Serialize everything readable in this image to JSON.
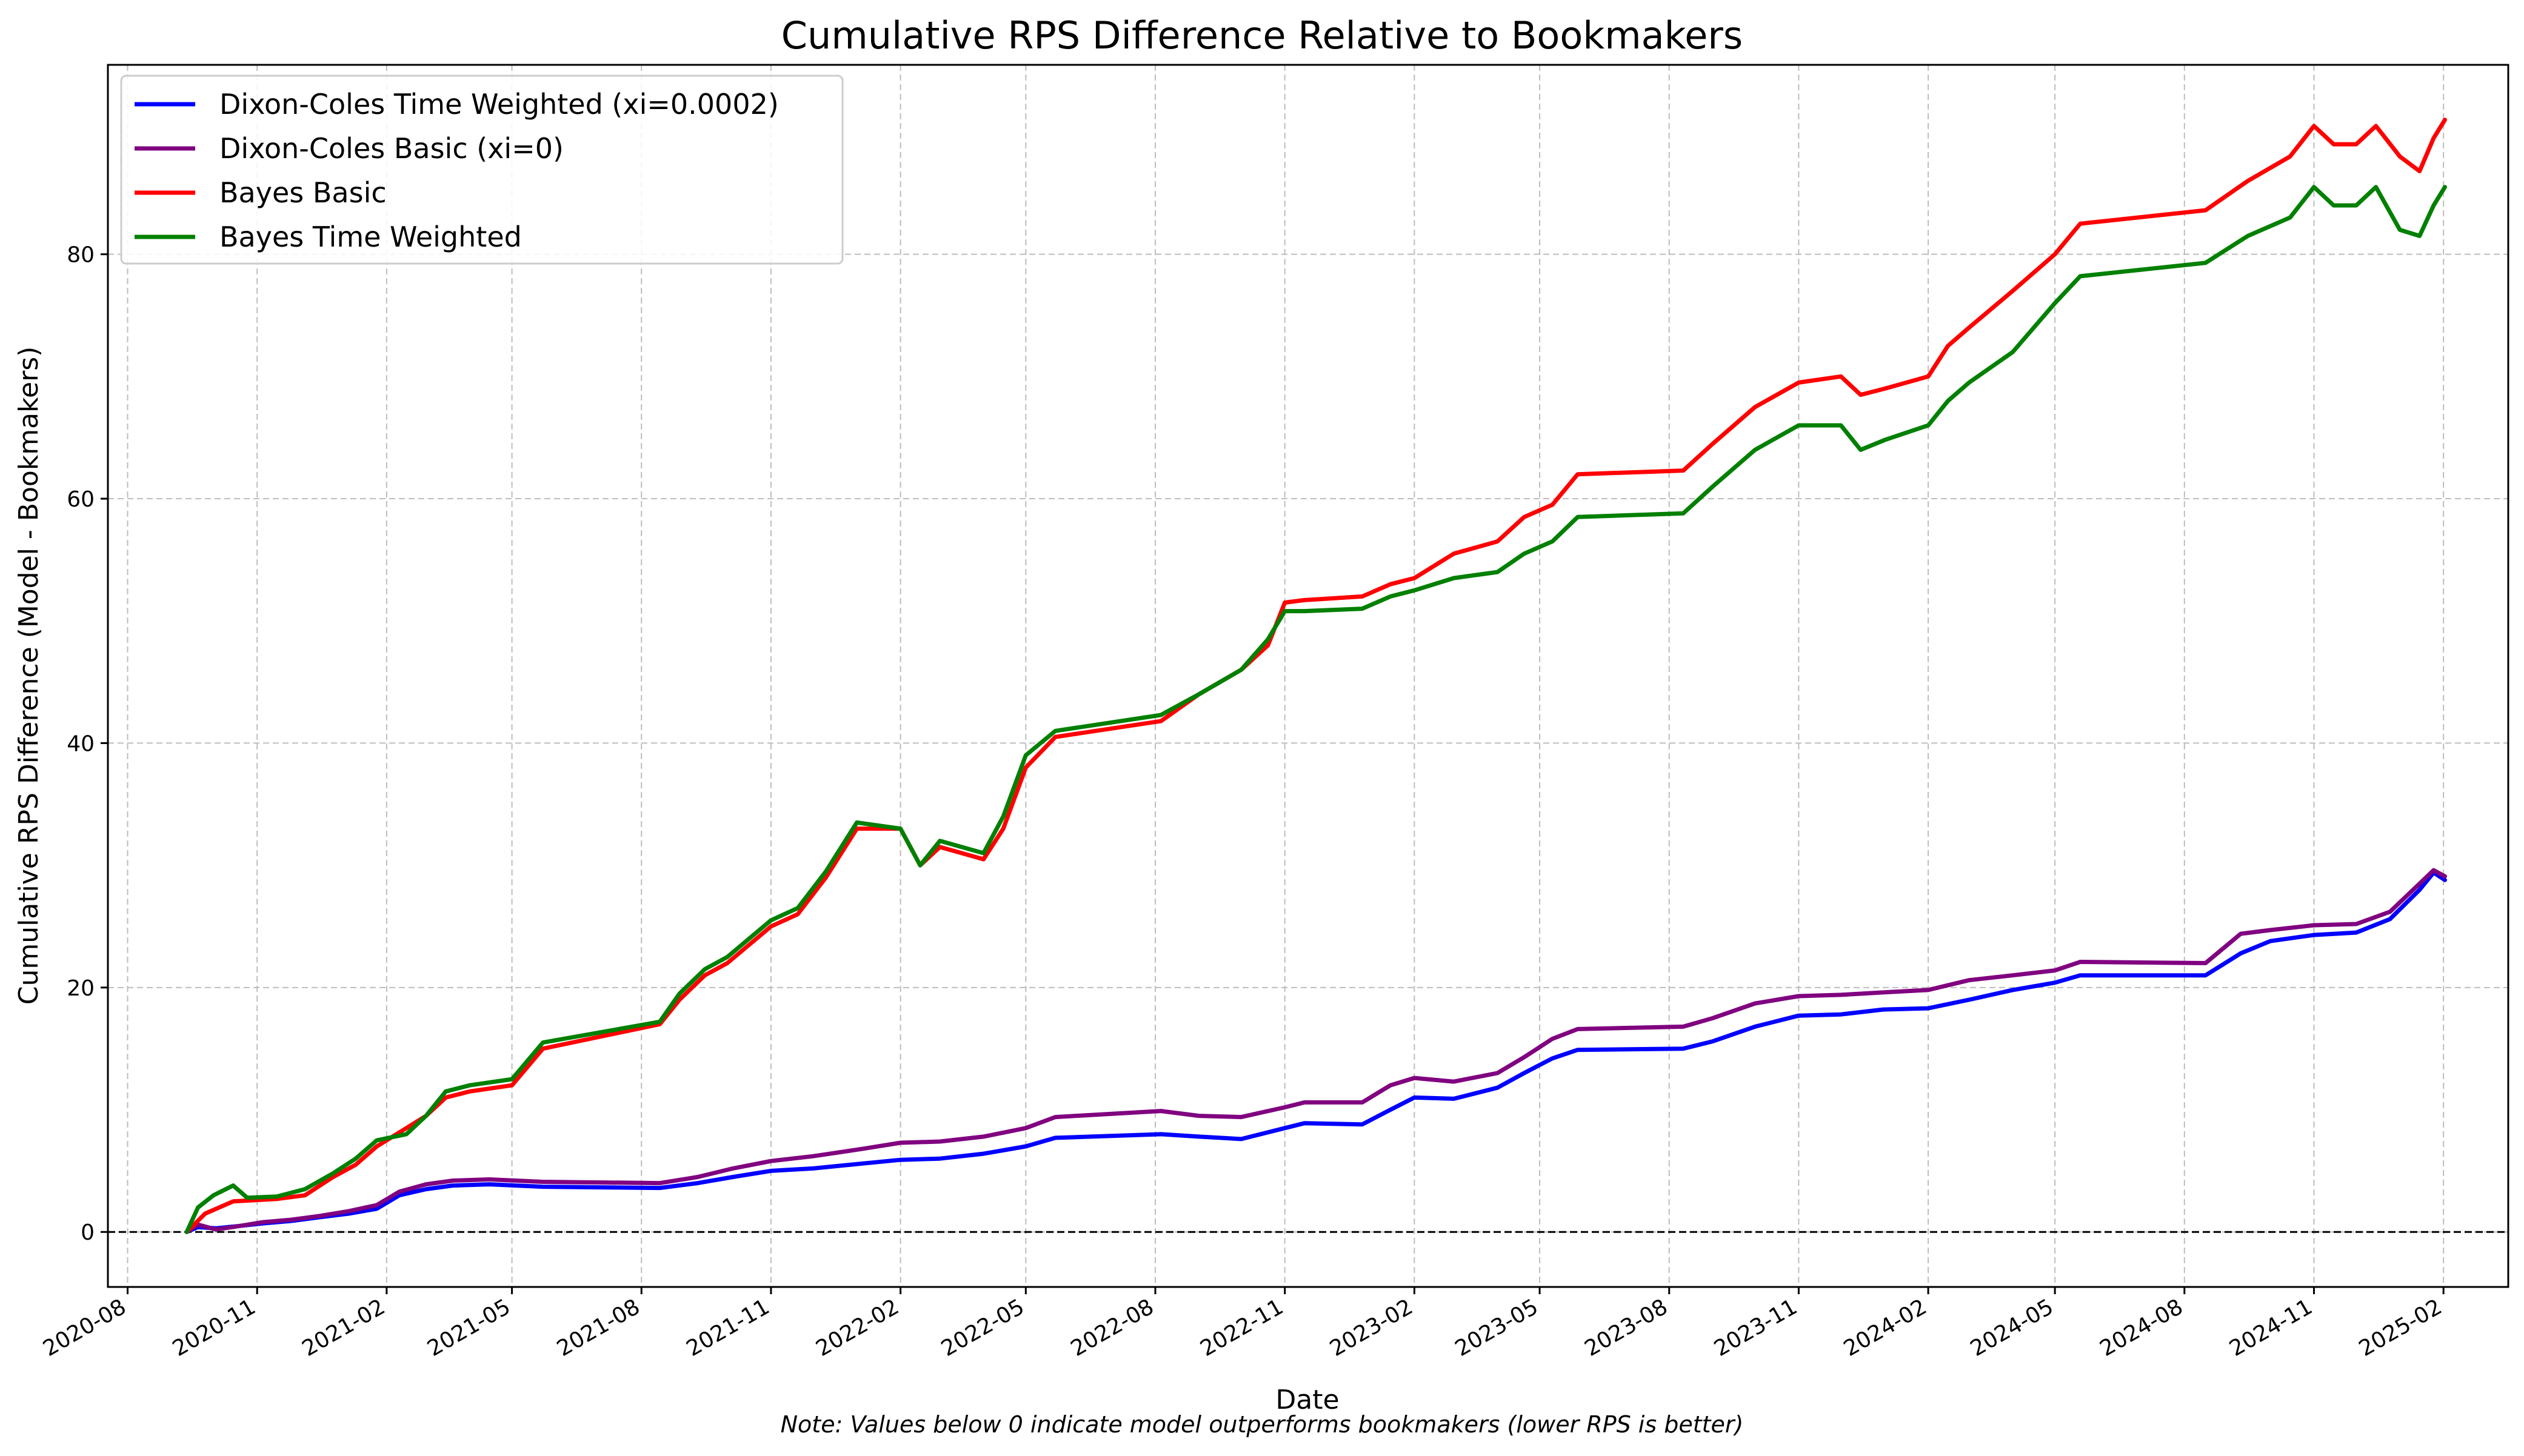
{
  "chart_data": {
    "type": "line",
    "title": "Cumulative RPS Difference Relative to Bookmakers",
    "xlabel": "Date",
    "ylabel": "Cumulative RPS Difference (Model - Bookmakers)",
    "note": "Note: Values below 0 indicate model outperforms bookmakers (lower RPS is better)",
    "x_ticks": [
      "2020-08",
      "2020-11",
      "2021-02",
      "2021-05",
      "2021-08",
      "2021-11",
      "2022-02",
      "2022-05",
      "2022-08",
      "2022-11",
      "2023-02",
      "2023-05",
      "2023-08",
      "2023-11",
      "2024-02",
      "2024-05",
      "2024-08",
      "2024-11",
      "2025-02"
    ],
    "y_ticks": [
      0,
      20,
      40,
      60,
      80
    ],
    "xlim": [
      "2020-07-18",
      "2025-03-19"
    ],
    "ylim": [
      -4.5,
      95.5
    ],
    "grid": true,
    "legend_position": "top-left",
    "reference_line": 0,
    "series": [
      {
        "name": "Dixon-Coles Time Weighted (xi=0.0002)",
        "color": "#0000ff",
        "points": [
          [
            "2020-09-12",
            0
          ],
          [
            "2020-09-20",
            0.4
          ],
          [
            "2020-10-03",
            0.3
          ],
          [
            "2020-10-20",
            0.5
          ],
          [
            "2020-11-05",
            0.7
          ],
          [
            "2020-11-25",
            0.9
          ],
          [
            "2020-12-15",
            1.2
          ],
          [
            "2021-01-05",
            1.5
          ],
          [
            "2021-01-25",
            1.9
          ],
          [
            "2021-02-10",
            3.0
          ],
          [
            "2021-03-01",
            3.5
          ],
          [
            "2021-03-20",
            3.8
          ],
          [
            "2021-04-15",
            3.9
          ],
          [
            "2021-05-23",
            3.7
          ],
          [
            "2021-08-14",
            3.6
          ],
          [
            "2021-09-10",
            4.0
          ],
          [
            "2021-10-05",
            4.5
          ],
          [
            "2021-11-01",
            5.0
          ],
          [
            "2021-12-01",
            5.2
          ],
          [
            "2022-01-05",
            5.6
          ],
          [
            "2022-02-01",
            5.9
          ],
          [
            "2022-03-01",
            6.0
          ],
          [
            "2022-04-01",
            6.4
          ],
          [
            "2022-05-01",
            7.0
          ],
          [
            "2022-05-22",
            7.7
          ],
          [
            "2022-08-05",
            8.0
          ],
          [
            "2022-09-01",
            7.8
          ],
          [
            "2022-10-01",
            7.6
          ],
          [
            "2022-11-01",
            8.5
          ],
          [
            "2022-11-15",
            8.9
          ],
          [
            "2022-12-26",
            8.8
          ],
          [
            "2023-01-15",
            10.0
          ],
          [
            "2023-02-01",
            11.0
          ],
          [
            "2023-03-01",
            10.9
          ],
          [
            "2023-04-01",
            11.8
          ],
          [
            "2023-04-20",
            13.0
          ],
          [
            "2023-05-10",
            14.2
          ],
          [
            "2023-05-28",
            14.9
          ],
          [
            "2023-08-11",
            15.0
          ],
          [
            "2023-09-01",
            15.6
          ],
          [
            "2023-10-01",
            16.8
          ],
          [
            "2023-11-01",
            17.7
          ],
          [
            "2023-12-01",
            17.8
          ],
          [
            "2023-12-31",
            18.2
          ],
          [
            "2024-02-01",
            18.3
          ],
          [
            "2024-03-01",
            19.0
          ],
          [
            "2024-04-01",
            19.8
          ],
          [
            "2024-05-01",
            20.4
          ],
          [
            "2024-05-19",
            21.0
          ],
          [
            "2024-08-16",
            21.0
          ],
          [
            "2024-09-10",
            22.8
          ],
          [
            "2024-10-01",
            23.8
          ],
          [
            "2024-11-01",
            24.3
          ],
          [
            "2024-12-01",
            24.5
          ],
          [
            "2024-12-25",
            25.6
          ],
          [
            "2025-01-15",
            28.0
          ],
          [
            "2025-01-25",
            29.4
          ],
          [
            "2025-02-02",
            28.8
          ]
        ]
      },
      {
        "name": "Dixon-Coles Basic (xi=0)",
        "color": "#800080",
        "points": [
          [
            "2020-09-12",
            0
          ],
          [
            "2020-09-20",
            0.6
          ],
          [
            "2020-10-03",
            0.2
          ],
          [
            "2020-10-20",
            0.5
          ],
          [
            "2020-11-05",
            0.8
          ],
          [
            "2020-11-25",
            1.0
          ],
          [
            "2020-12-15",
            1.3
          ],
          [
            "2021-01-05",
            1.7
          ],
          [
            "2021-01-25",
            2.2
          ],
          [
            "2021-02-10",
            3.3
          ],
          [
            "2021-03-01",
            3.9
          ],
          [
            "2021-03-20",
            4.2
          ],
          [
            "2021-04-15",
            4.3
          ],
          [
            "2021-05-23",
            4.1
          ],
          [
            "2021-08-14",
            4.0
          ],
          [
            "2021-09-10",
            4.5
          ],
          [
            "2021-10-05",
            5.2
          ],
          [
            "2021-11-01",
            5.8
          ],
          [
            "2021-12-01",
            6.2
          ],
          [
            "2022-01-05",
            6.8
          ],
          [
            "2022-02-01",
            7.3
          ],
          [
            "2022-03-01",
            7.4
          ],
          [
            "2022-04-01",
            7.8
          ],
          [
            "2022-05-01",
            8.5
          ],
          [
            "2022-05-22",
            9.4
          ],
          [
            "2022-08-05",
            9.9
          ],
          [
            "2022-09-01",
            9.5
          ],
          [
            "2022-10-01",
            9.4
          ],
          [
            "2022-11-01",
            10.2
          ],
          [
            "2022-11-15",
            10.6
          ],
          [
            "2022-12-26",
            10.6
          ],
          [
            "2023-01-15",
            12.0
          ],
          [
            "2023-02-01",
            12.6
          ],
          [
            "2023-03-01",
            12.3
          ],
          [
            "2023-04-01",
            13.0
          ],
          [
            "2023-04-20",
            14.3
          ],
          [
            "2023-05-10",
            15.8
          ],
          [
            "2023-05-28",
            16.6
          ],
          [
            "2023-08-11",
            16.8
          ],
          [
            "2023-09-01",
            17.5
          ],
          [
            "2023-10-01",
            18.7
          ],
          [
            "2023-11-01",
            19.3
          ],
          [
            "2023-12-01",
            19.4
          ],
          [
            "2023-12-31",
            19.6
          ],
          [
            "2024-02-01",
            19.8
          ],
          [
            "2024-03-01",
            20.6
          ],
          [
            "2024-04-01",
            21.0
          ],
          [
            "2024-05-01",
            21.4
          ],
          [
            "2024-05-19",
            22.1
          ],
          [
            "2024-08-16",
            22.0
          ],
          [
            "2024-09-10",
            24.4
          ],
          [
            "2024-10-01",
            24.7
          ],
          [
            "2024-11-01",
            25.1
          ],
          [
            "2024-12-01",
            25.2
          ],
          [
            "2024-12-25",
            26.2
          ],
          [
            "2025-01-15",
            28.5
          ],
          [
            "2025-01-25",
            29.6
          ],
          [
            "2025-02-02",
            29.1
          ]
        ]
      },
      {
        "name": "Bayes Basic",
        "color": "#ff0000",
        "points": [
          [
            "2020-09-12",
            0
          ],
          [
            "2020-09-25",
            1.5
          ],
          [
            "2020-10-15",
            2.5
          ],
          [
            "2020-11-15",
            2.7
          ],
          [
            "2020-12-05",
            3.0
          ],
          [
            "2020-12-25",
            4.5
          ],
          [
            "2021-01-10",
            5.5
          ],
          [
            "2021-01-25",
            7.0
          ],
          [
            "2021-02-15",
            8.5
          ],
          [
            "2021-03-01",
            9.5
          ],
          [
            "2021-03-15",
            11.0
          ],
          [
            "2021-04-01",
            11.5
          ],
          [
            "2021-05-01",
            12.0
          ],
          [
            "2021-05-23",
            15.0
          ],
          [
            "2021-08-14",
            17.0
          ],
          [
            "2021-08-28",
            19.0
          ],
          [
            "2021-09-15",
            21.0
          ],
          [
            "2021-10-01",
            22.0
          ],
          [
            "2021-11-01",
            25.0
          ],
          [
            "2021-11-20",
            26.0
          ],
          [
            "2021-12-10",
            29.0
          ],
          [
            "2022-01-01",
            33.0
          ],
          [
            "2022-02-01",
            33.0
          ],
          [
            "2022-02-15",
            30.0
          ],
          [
            "2022-03-01",
            31.5
          ],
          [
            "2022-04-01",
            30.5
          ],
          [
            "2022-04-15",
            33.0
          ],
          [
            "2022-05-01",
            38.0
          ],
          [
            "2022-05-22",
            40.5
          ],
          [
            "2022-08-05",
            41.8
          ],
          [
            "2022-09-01",
            44.0
          ],
          [
            "2022-10-01",
            46.0
          ],
          [
            "2022-10-20",
            48.0
          ],
          [
            "2022-11-01",
            51.5
          ],
          [
            "2022-11-15",
            51.7
          ],
          [
            "2022-12-26",
            52.0
          ],
          [
            "2023-01-15",
            53.0
          ],
          [
            "2023-02-01",
            53.5
          ],
          [
            "2023-03-01",
            55.5
          ],
          [
            "2023-04-01",
            56.5
          ],
          [
            "2023-04-20",
            58.5
          ],
          [
            "2023-05-10",
            59.5
          ],
          [
            "2023-05-28",
            62.0
          ],
          [
            "2023-08-11",
            62.3
          ],
          [
            "2023-09-01",
            64.5
          ],
          [
            "2023-10-01",
            67.5
          ],
          [
            "2023-11-01",
            69.5
          ],
          [
            "2023-12-01",
            70.0
          ],
          [
            "2023-12-15",
            68.5
          ],
          [
            "2024-01-01",
            69.0
          ],
          [
            "2024-02-01",
            70.0
          ],
          [
            "2024-02-15",
            72.5
          ],
          [
            "2024-03-01",
            74.0
          ],
          [
            "2024-04-01",
            77.0
          ],
          [
            "2024-05-01",
            80.0
          ],
          [
            "2024-05-19",
            82.5
          ],
          [
            "2024-08-16",
            83.6
          ],
          [
            "2024-09-15",
            86.0
          ],
          [
            "2024-10-15",
            88.0
          ],
          [
            "2024-11-01",
            90.5
          ],
          [
            "2024-11-15",
            89.0
          ],
          [
            "2024-12-01",
            89.0
          ],
          [
            "2024-12-15",
            90.5
          ],
          [
            "2025-01-01",
            88.0
          ],
          [
            "2025-01-15",
            86.8
          ],
          [
            "2025-01-25",
            89.5
          ],
          [
            "2025-02-02",
            91.0
          ]
        ]
      },
      {
        "name": "Bayes Time Weighted",
        "color": "#008000",
        "points": [
          [
            "2020-09-12",
            0
          ],
          [
            "2020-09-20",
            2.0
          ],
          [
            "2020-10-01",
            3.0
          ],
          [
            "2020-10-15",
            3.8
          ],
          [
            "2020-10-25",
            2.8
          ],
          [
            "2020-11-15",
            2.9
          ],
          [
            "2020-12-05",
            3.5
          ],
          [
            "2020-12-25",
            4.8
          ],
          [
            "2021-01-10",
            6.0
          ],
          [
            "2021-01-25",
            7.5
          ],
          [
            "2021-02-15",
            8.0
          ],
          [
            "2021-03-01",
            9.5
          ],
          [
            "2021-03-15",
            11.5
          ],
          [
            "2021-04-01",
            12.0
          ],
          [
            "2021-05-01",
            12.5
          ],
          [
            "2021-05-23",
            15.5
          ],
          [
            "2021-08-14",
            17.2
          ],
          [
            "2021-08-28",
            19.5
          ],
          [
            "2021-09-15",
            21.5
          ],
          [
            "2021-10-01",
            22.5
          ],
          [
            "2021-11-01",
            25.5
          ],
          [
            "2021-11-20",
            26.5
          ],
          [
            "2021-12-10",
            29.5
          ],
          [
            "2022-01-01",
            33.5
          ],
          [
            "2022-02-01",
            33.0
          ],
          [
            "2022-02-15",
            30.0
          ],
          [
            "2022-03-01",
            32.0
          ],
          [
            "2022-04-01",
            31.0
          ],
          [
            "2022-04-15",
            34.0
          ],
          [
            "2022-05-01",
            39.0
          ],
          [
            "2022-05-22",
            41.0
          ],
          [
            "2022-08-05",
            42.3
          ],
          [
            "2022-09-01",
            44.0
          ],
          [
            "2022-10-01",
            46.0
          ],
          [
            "2022-10-20",
            48.5
          ],
          [
            "2022-11-01",
            50.8
          ],
          [
            "2022-11-15",
            50.8
          ],
          [
            "2022-12-26",
            51.0
          ],
          [
            "2023-01-15",
            52.0
          ],
          [
            "2023-02-01",
            52.5
          ],
          [
            "2023-03-01",
            53.5
          ],
          [
            "2023-04-01",
            54.0
          ],
          [
            "2023-04-20",
            55.5
          ],
          [
            "2023-05-10",
            56.5
          ],
          [
            "2023-05-28",
            58.5
          ],
          [
            "2023-08-11",
            58.8
          ],
          [
            "2023-09-01",
            61.0
          ],
          [
            "2023-10-01",
            64.0
          ],
          [
            "2023-11-01",
            66.0
          ],
          [
            "2023-12-01",
            66.0
          ],
          [
            "2023-12-15",
            64.0
          ],
          [
            "2024-01-01",
            64.8
          ],
          [
            "2024-02-01",
            66.0
          ],
          [
            "2024-02-15",
            68.0
          ],
          [
            "2024-03-01",
            69.5
          ],
          [
            "2024-04-01",
            72.0
          ],
          [
            "2024-05-01",
            76.0
          ],
          [
            "2024-05-19",
            78.2
          ],
          [
            "2024-08-16",
            79.3
          ],
          [
            "2024-09-15",
            81.5
          ],
          [
            "2024-10-15",
            83.0
          ],
          [
            "2024-11-01",
            85.5
          ],
          [
            "2024-11-15",
            84.0
          ],
          [
            "2024-12-01",
            84.0
          ],
          [
            "2024-12-15",
            85.5
          ],
          [
            "2025-01-01",
            82.0
          ],
          [
            "2025-01-15",
            81.5
          ],
          [
            "2025-01-25",
            84.0
          ],
          [
            "2025-02-02",
            85.5
          ]
        ]
      }
    ]
  }
}
